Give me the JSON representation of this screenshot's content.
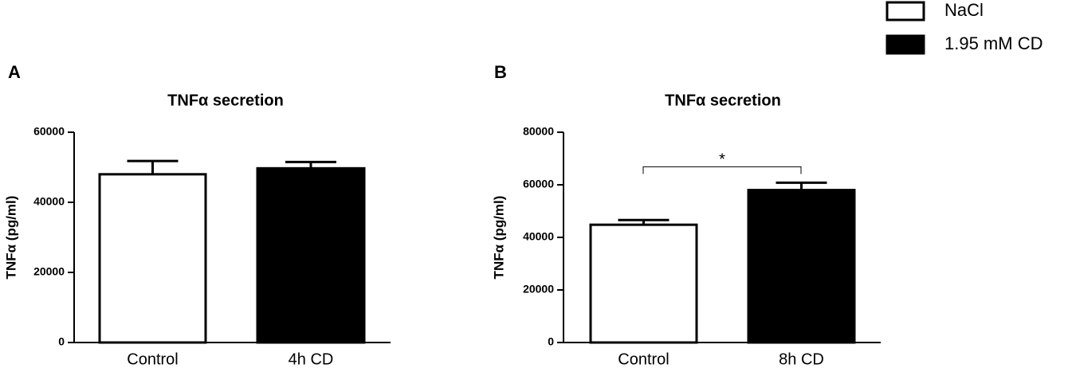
{
  "legend": {
    "entries": [
      {
        "label": "NaCl",
        "color": "#ffffff"
      },
      {
        "label": "1.95 mM CD",
        "color": "#000000"
      }
    ]
  },
  "chart_data": [
    {
      "type": "bar",
      "panel": "A",
      "title": "TNFα secretion",
      "y_label": "TNFα (pg/ml)",
      "categories": [
        "Control",
        "4h CD"
      ],
      "values": [
        48000,
        49700
      ],
      "errors": [
        3800,
        1800
      ],
      "colors": [
        "#ffffff",
        "#000000"
      ],
      "ylim": [
        0,
        60000
      ],
      "yticks": [
        0,
        20000,
        40000,
        60000
      ]
    },
    {
      "type": "bar",
      "panel": "B",
      "title": "TNFα secretion",
      "y_label": "TNFα (pg/ml)",
      "categories": [
        "Control",
        "8h CD"
      ],
      "values": [
        44800,
        58000
      ],
      "errors": [
        1800,
        2800
      ],
      "colors": [
        "#ffffff",
        "#000000"
      ],
      "ylim": [
        0,
        80000
      ],
      "yticks": [
        0,
        20000,
        40000,
        60000,
        80000
      ],
      "annotation": "*"
    }
  ]
}
